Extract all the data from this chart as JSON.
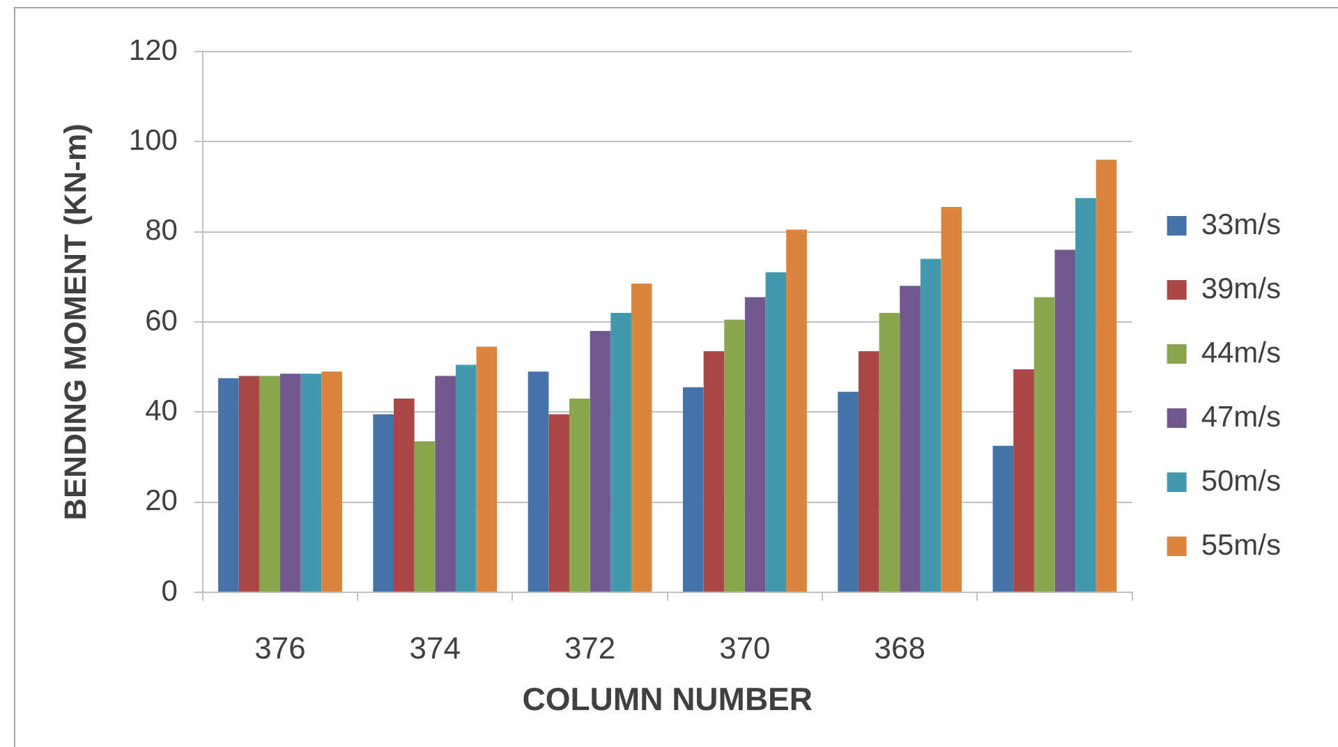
{
  "chart_data": {
    "type": "bar",
    "xlabel": "COLUMN NUMBER",
    "ylabel": "BENDING MOMENT (KN-m)",
    "categories": [
      "376",
      "374",
      "372",
      "370",
      "368",
      null
    ],
    "series": [
      {
        "name": "33m/s",
        "color": "#4572a7",
        "values": [
          47.5,
          39.5,
          49,
          45.5,
          44.5,
          32.5
        ]
      },
      {
        "name": "39m/s",
        "color": "#aa4643",
        "values": [
          48,
          43,
          39.5,
          53.5,
          53.5,
          49.5
        ]
      },
      {
        "name": "44m/s",
        "color": "#89a54e",
        "values": [
          48,
          33.5,
          43,
          60.5,
          62,
          65.5
        ]
      },
      {
        "name": "47m/s",
        "color": "#71588f",
        "values": [
          48.5,
          48,
          58,
          65.5,
          68,
          76
        ]
      },
      {
        "name": "50m/s",
        "color": "#4198af",
        "values": [
          48.5,
          50.5,
          62,
          71,
          74,
          87.5
        ]
      },
      {
        "name": "55m/s",
        "color": "#db843d",
        "values": [
          49,
          54.5,
          68.5,
          80.5,
          85.5,
          96
        ]
      }
    ],
    "ylim": [
      0,
      120
    ],
    "yticks": [
      0,
      20,
      40,
      60,
      80,
      100,
      120
    ],
    "grid": "y",
    "legend": "right"
  }
}
